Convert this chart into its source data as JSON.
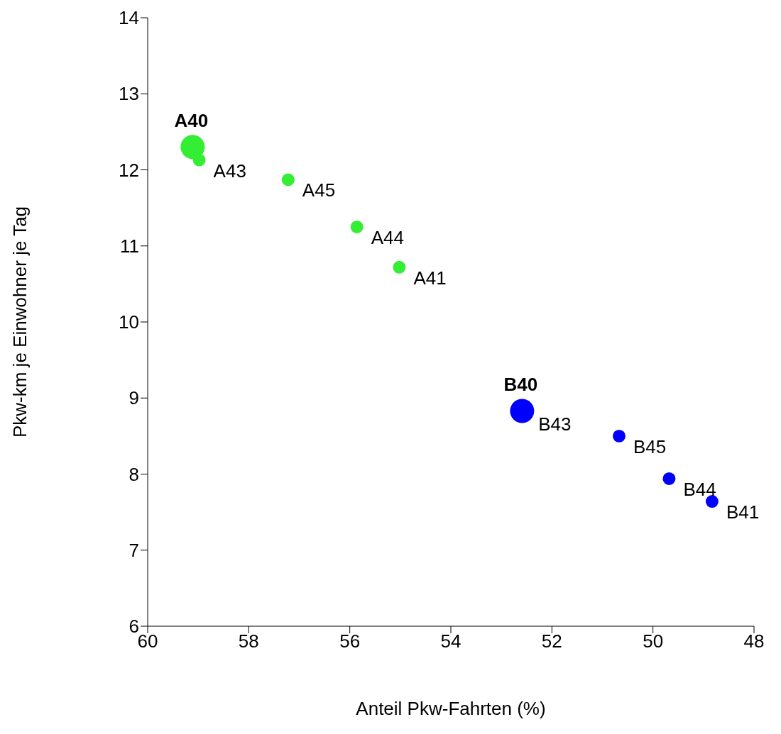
{
  "chart_data": {
    "type": "bubble",
    "xlabel": "Anteil Pkw-Fahrten (%)",
    "ylabel": "Pkw-km je Einwohner je Tag",
    "xlim": [
      60,
      48
    ],
    "xticks": [
      60,
      58,
      56,
      54,
      52,
      50,
      48
    ],
    "ylim": [
      6,
      14
    ],
    "yticks": [
      6,
      7,
      8,
      9,
      10,
      11,
      12,
      13,
      14
    ],
    "grid": false,
    "legend": false,
    "marker": "circle",
    "series": [
      {
        "color": "#33ee33",
        "x": [
          59.11,
          58.98,
          57.22,
          55.86,
          55.02
        ],
        "values": [
          12.3,
          12.13,
          11.87,
          11.25,
          10.72
        ],
        "sizes": [
          1,
          0.28,
          0.28,
          0.28,
          0.28
        ]
      },
      {
        "color": "#0000ff",
        "x": [
          52.59,
          50.67,
          49.68,
          48.83
        ],
        "values": [
          8.83,
          8.5,
          7.94,
          7.64
        ],
        "sizes": [
          1,
          0.28,
          0.28,
          0.28
        ]
      }
    ],
    "annotations": [
      {
        "text": "A40",
        "x": 59.11,
        "y": 12.3
      },
      {
        "text": "A43",
        "x": 58.98,
        "y": 12.13
      },
      {
        "text": "A45",
        "x": 57.22,
        "y": 11.87
      },
      {
        "text": "A44",
        "x": 55.86,
        "y": 11.25
      },
      {
        "text": "A41",
        "x": 55.02,
        "y": 10.72
      },
      {
        "text": "B40",
        "x": 52.59,
        "y": 8.83
      },
      {
        "text": "B43",
        "x": 52.55,
        "y": 8.8
      },
      {
        "text": "B45",
        "x": 50.67,
        "y": 8.5
      },
      {
        "text": "B44",
        "x": 49.68,
        "y": 7.94
      },
      {
        "text": "B41",
        "x": 48.83,
        "y": 7.64
      }
    ]
  }
}
